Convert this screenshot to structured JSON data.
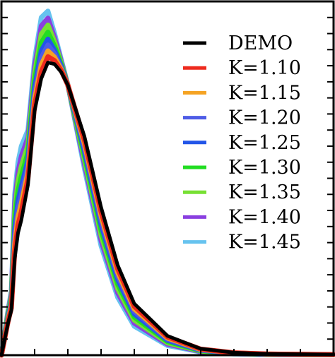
{
  "chart_data": {
    "type": "line",
    "title": "",
    "xlabel": "",
    "ylabel": "",
    "xlim": [
      0,
      1
    ],
    "ylim": [
      0,
      1.1
    ],
    "grid": false,
    "legend_position": "top-right",
    "x_ticks": [
      0,
      0.1,
      0.2,
      0.3,
      0.4,
      0.5,
      0.6,
      0.7,
      0.8,
      0.9,
      1.0
    ],
    "y_ticks": [
      0.0,
      0.05,
      0.1,
      0.15,
      0.2,
      0.25,
      0.3,
      0.35,
      0.4,
      0.45,
      0.5,
      0.55,
      0.6,
      0.65,
      0.7,
      0.75,
      0.8,
      0.85,
      0.9,
      0.95,
      1.0,
      1.05,
      1.1
    ],
    "x": [
      0.0,
      0.02,
      0.03,
      0.04,
      0.05,
      0.06,
      0.08,
      0.1,
      0.12,
      0.14,
      0.16,
      0.18,
      0.2,
      0.25,
      0.3,
      0.35,
      0.4,
      0.5,
      0.6,
      0.7,
      0.8,
      1.0
    ],
    "series": [
      {
        "name": "DEMO",
        "color": "#000000",
        "k": 0.0
      },
      {
        "name": "K=1.10",
        "color": "#ee2a1e",
        "k": 0.05
      },
      {
        "name": "K=1.15",
        "color": "#f5a323",
        "k": 0.1
      },
      {
        "name": "K=1.20",
        "color": "#4e5ce6",
        "k": 0.15
      },
      {
        "name": "K=1.25",
        "color": "#2255e8",
        "k": 0.2
      },
      {
        "name": "K=1.30",
        "color": "#22dd22",
        "k": 0.26
      },
      {
        "name": "K=1.35",
        "color": "#77e033",
        "k": 0.32
      },
      {
        "name": "K=1.40",
        "color": "#8a3fe0",
        "k": 0.38
      },
      {
        "name": "K=1.45",
        "color": "#66c3ef",
        "k": 0.44
      }
    ]
  }
}
